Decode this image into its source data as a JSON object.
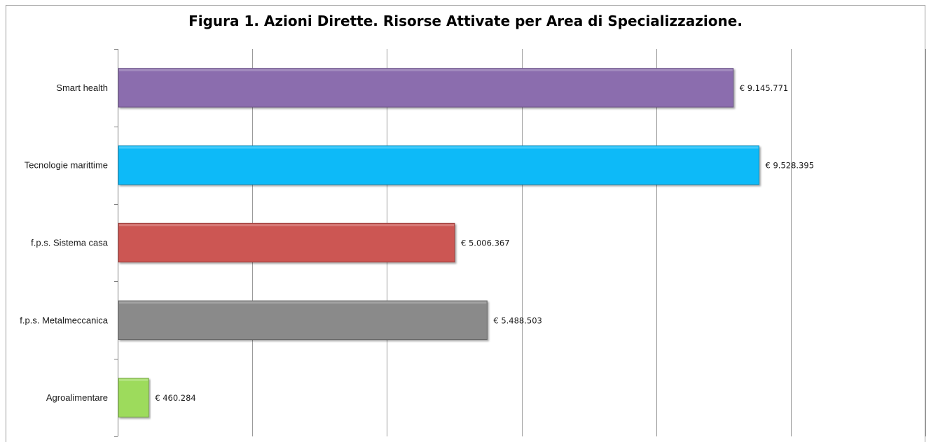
{
  "chart_data": {
    "type": "bar",
    "orientation": "horizontal",
    "title": "Figura 1. Azioni Dirette. Risorse Attivate per Area di Specializzazione.",
    "xlabel": "",
    "ylabel": "",
    "xlim": [
      0,
      12000000
    ],
    "grid": true,
    "legend": "none",
    "categories": [
      "Smart health",
      "Tecnologie marittime",
      "f.p.s. Sistema casa",
      "f.p.s. Metalmeccanica",
      "Agroalimentare"
    ],
    "values": [
      9145771,
      9528395,
      5006367,
      5488503,
      460284
    ],
    "value_labels": [
      "€ 9.145.771",
      "€ 9.528.395",
      "€ 5.006.367",
      "€ 5.488.503",
      "€ 460.284"
    ],
    "colors": [
      "#8B6DAE",
      "#0ABAF8",
      "#CC5752",
      "#8A8A8A",
      "#9DDB5C"
    ]
  }
}
